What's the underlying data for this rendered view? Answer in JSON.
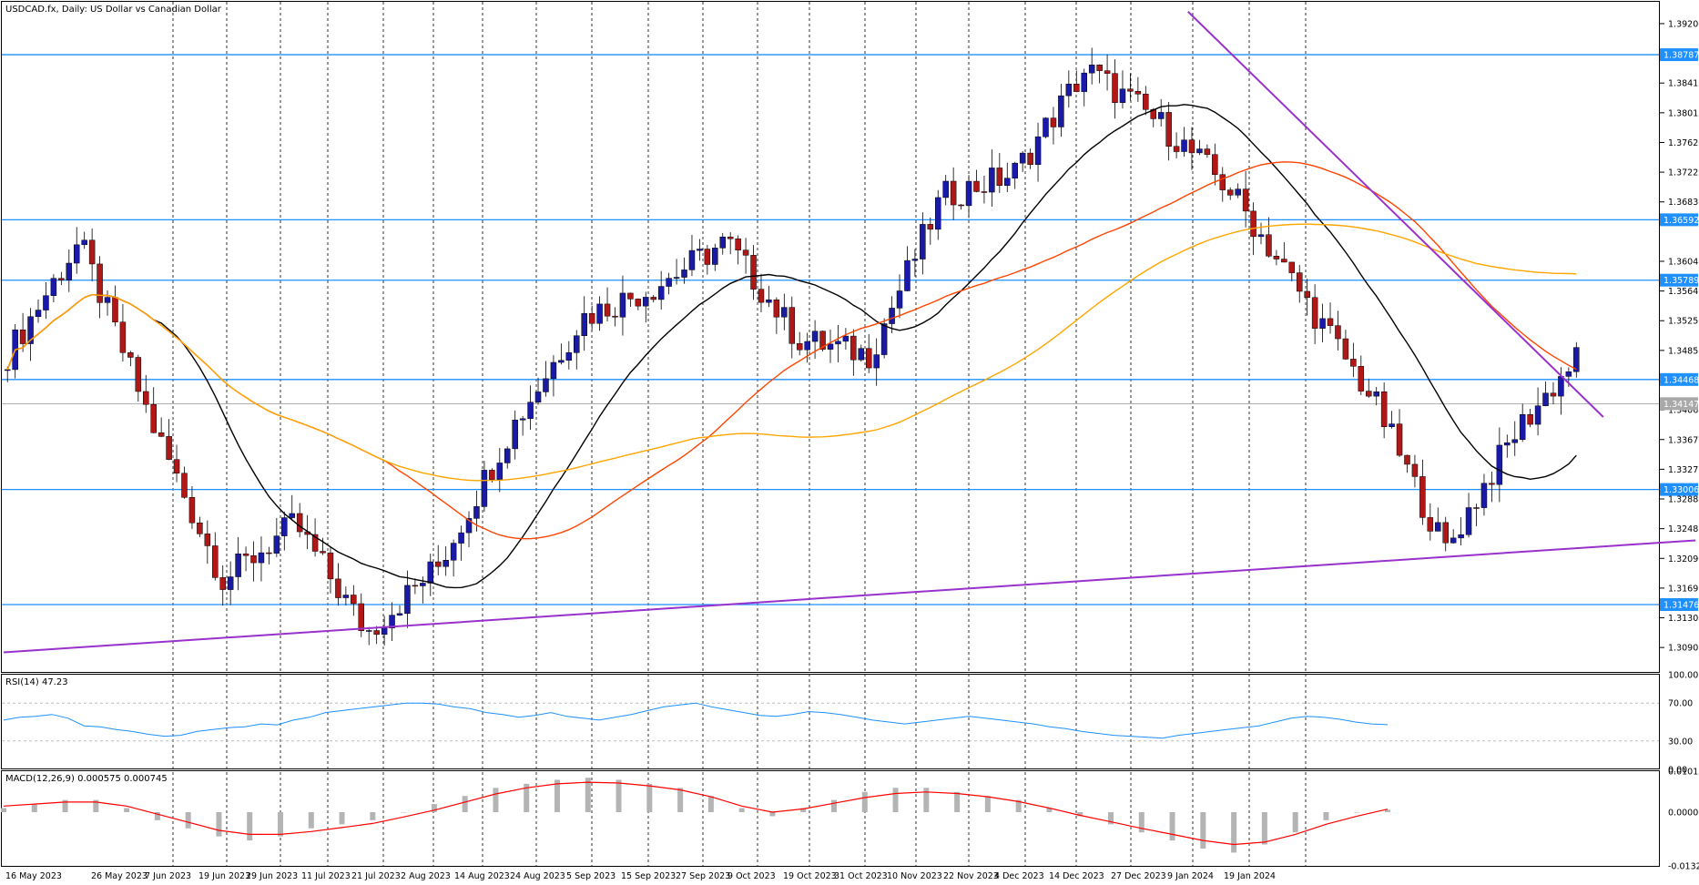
{
  "window": {
    "symbol_title": "USDCAD.fx, Daily:  US Dollar vs Canadian Dollar"
  },
  "colors": {
    "bull_candle": "#1a1aa8",
    "bear_candle": "#b01818",
    "sma20": "#000000",
    "sma50": "#ff4500",
    "sma200": "#ffa500",
    "trendline": "#9932cc",
    "hline": "#1e90ff",
    "rsi_line": "#1e90ff",
    "macd_hist": "#b4b4b4",
    "macd_signal": "#ff0000"
  },
  "chart_data": [
    {
      "type": "candlestick",
      "title": "USDCAD.fx, Daily:  US Dollar vs Canadian Dollar",
      "ylim": [
        1.3058,
        1.3949
      ],
      "price_ticks": [
        "1.39200",
        "1.38410",
        "1.38015",
        "1.37620",
        "1.37225",
        "1.36830",
        "1.36040",
        "1.35645",
        "1.35250",
        "1.34855",
        "1.34065",
        "1.33670",
        "1.33275",
        "1.32880",
        "1.32485",
        "1.32090",
        "1.31695",
        "1.31300",
        "1.30905"
      ],
      "date_ticks": [
        "16 May 2023",
        "26 May 2023",
        "7 Jun 2023",
        "19 Jun 2023",
        "29 Jun 2023",
        "11 Jul 2023",
        "21 Jul 2023",
        "2 Aug 2023",
        "14 Aug 2023",
        "24 Aug 2023",
        "5 Sep 2023",
        "15 Sep 2023",
        "27 Sep 2023",
        "9 Oct 2023",
        "19 Oct 2023",
        "31 Oct 2023",
        "10 Nov 2023",
        "22 Nov 2023",
        "4 Dec 2023",
        "14 Dec 2023",
        "27 Dec 2023",
        "9 Jan 2024",
        "19 Jan 2024"
      ],
      "horizontal_levels": [
        {
          "label": "1.38787",
          "value": 1.38787
        },
        {
          "label": "1.36592",
          "value": 1.36592
        },
        {
          "label": "1.35789",
          "value": 1.35789
        },
        {
          "label": "1.34468",
          "value": 1.34468
        },
        {
          "label": "1.33006",
          "value": 1.33006
        },
        {
          "label": "1.31476",
          "value": 1.31476
        }
      ],
      "current_price": {
        "label": "1.34147",
        "value": 1.34147
      },
      "trendlines": [
        {
          "x0": 0,
          "y0": 1.3084,
          "x1": 220,
          "y1": 1.3233
        },
        {
          "x0": 154,
          "y0": 1.3936,
          "x1": 208,
          "y1": 1.3397
        }
      ],
      "key_points": [
        {
          "date": "16 May 2023",
          "close": 1.348
        },
        {
          "date": "26 May 2023",
          "close": 1.363
        },
        {
          "date": "7 Jun 2023",
          "close": 1.339
        },
        {
          "date": "19 Jun 2023",
          "close": 1.318
        },
        {
          "date": "29 Jun 2023",
          "close": 1.3255
        },
        {
          "date": "11 Jul 2023",
          "close": 1.311
        },
        {
          "date": "21 Jul 2023",
          "close": 1.32
        },
        {
          "date": "2 Aug 2023",
          "close": 1.338
        },
        {
          "date": "14 Aug 2023",
          "close": 1.353
        },
        {
          "date": "24 Aug 2023",
          "close": 1.357
        },
        {
          "date": "5 Sep 2023",
          "close": 1.363
        },
        {
          "date": "15 Sep 2023",
          "close": 1.35
        },
        {
          "date": "27 Sep 2023",
          "close": 1.348
        },
        {
          "date": "9 Oct 2023",
          "close": 1.369
        },
        {
          "date": "19 Oct 2023",
          "close": 1.372
        },
        {
          "date": "31 Oct 2023",
          "close": 1.386
        },
        {
          "date": "10 Nov 2023",
          "close": 1.379
        },
        {
          "date": "22 Nov 2023",
          "close": 1.37
        },
        {
          "date": "4 Dec 2023",
          "close": 1.356
        },
        {
          "date": "14 Dec 2023",
          "close": 1.342
        },
        {
          "date": "27 Dec 2023",
          "close": 1.322
        },
        {
          "date": "9 Jan 2024",
          "close": 1.338
        },
        {
          "date": "19 Jan 2024",
          "close": 1.3495
        }
      ]
    },
    {
      "type": "line",
      "title": "RSI(14) 47.23",
      "ylim": [
        0,
        100
      ],
      "ticks": [
        "100.00",
        "70.00",
        "30.00",
        "0.00"
      ],
      "levels": [
        70,
        30
      ],
      "values": [
        52,
        55,
        56,
        58,
        54,
        46,
        45,
        42,
        40,
        37,
        35,
        36,
        40,
        42,
        44,
        45,
        48,
        47,
        52,
        55,
        60,
        62,
        64,
        66,
        68,
        70,
        70,
        69,
        66,
        64,
        60,
        58,
        55,
        57,
        60,
        56,
        54,
        52,
        55,
        58,
        62,
        66,
        68,
        70,
        66,
        63,
        60,
        57,
        56,
        58,
        61,
        60,
        58,
        55,
        52,
        50,
        48,
        50,
        52,
        54,
        56,
        54,
        52,
        50,
        48,
        45,
        43,
        40,
        38,
        36,
        35,
        34,
        33,
        36,
        38,
        40,
        42,
        44,
        46,
        50,
        54,
        56,
        55,
        53,
        50,
        48,
        47.23
      ]
    },
    {
      "type": "bar",
      "title": "MACD(12,26,9) 0.000575 0.000745",
      "ylim": [
        -0.013283,
        0.010124
      ],
      "ticks": [
        "0.010124",
        "0.000000",
        "-0.013283"
      ],
      "histogram": [
        0.001,
        0.002,
        0.003,
        0.003,
        0.001,
        -0.002,
        -0.004,
        -0.006,
        -0.007,
        -0.006,
        -0.004,
        -0.003,
        -0.002,
        0.0,
        0.002,
        0.004,
        0.006,
        0.007,
        0.008,
        0.0085,
        0.008,
        0.007,
        0.006,
        0.004,
        0.001,
        -0.001,
        0.001,
        0.003,
        0.005,
        0.006,
        0.006,
        0.005,
        0.004,
        0.003,
        0.001,
        -0.001,
        -0.003,
        -0.005,
        -0.007,
        -0.009,
        -0.01,
        -0.008,
        -0.005,
        -0.002,
        0.0,
        0.0006
      ],
      "signal": [
        0.0015,
        0.002,
        0.0025,
        0.0025,
        0.0015,
        -0.0005,
        -0.0025,
        -0.0045,
        -0.0055,
        -0.0055,
        -0.0048,
        -0.0038,
        -0.0028,
        -0.0012,
        0.0005,
        0.0025,
        0.0045,
        0.006,
        0.007,
        0.0074,
        0.0072,
        0.0065,
        0.0055,
        0.0038,
        0.0015,
        0.0,
        0.0008,
        0.0022,
        0.0036,
        0.0046,
        0.005,
        0.0046,
        0.0038,
        0.0026,
        0.001,
        -0.0008,
        -0.0024,
        -0.004,
        -0.0055,
        -0.007,
        -0.008,
        -0.0074,
        -0.0055,
        -0.003,
        -0.001,
        0.000745
      ]
    }
  ]
}
